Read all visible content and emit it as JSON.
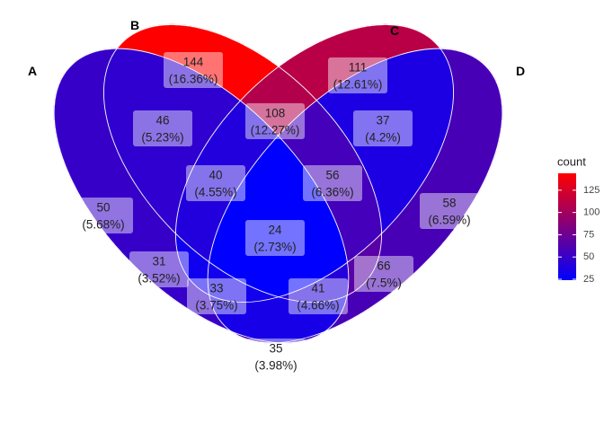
{
  "chart_data": {
    "type": "venn",
    "sets": [
      "A",
      "B",
      "C",
      "D"
    ],
    "regions": [
      {
        "sets": [
          "A"
        ],
        "count": 50,
        "percent": "5.68%"
      },
      {
        "sets": [
          "B"
        ],
        "count": 144,
        "percent": "16.36%"
      },
      {
        "sets": [
          "C"
        ],
        "count": 111,
        "percent": "12.61%"
      },
      {
        "sets": [
          "D"
        ],
        "count": 58,
        "percent": "6.59%"
      },
      {
        "sets": [
          "A",
          "B"
        ],
        "count": 46,
        "percent": "5.23%"
      },
      {
        "sets": [
          "B",
          "C"
        ],
        "count": 108,
        "percent": "12.27%"
      },
      {
        "sets": [
          "C",
          "D"
        ],
        "count": 37,
        "percent": "4.2%"
      },
      {
        "sets": [
          "A",
          "B",
          "C"
        ],
        "count": 40,
        "percent": "4.55%"
      },
      {
        "sets": [
          "B",
          "C",
          "D"
        ],
        "count": 56,
        "percent": "6.36%"
      },
      {
        "sets": [
          "A",
          "B",
          "C",
          "D"
        ],
        "count": 24,
        "percent": "2.73%"
      },
      {
        "sets": [
          "A",
          "C"
        ],
        "count": 31,
        "percent": "3.52%"
      },
      {
        "sets": [
          "A",
          "C",
          "D"
        ],
        "count": 33,
        "percent": "3.75%"
      },
      {
        "sets": [
          "A",
          "B",
          "D"
        ],
        "count": 41,
        "percent": "4.66%"
      },
      {
        "sets": [
          "B",
          "D"
        ],
        "count": 66,
        "percent": "7.5%"
      },
      {
        "sets": [
          "A",
          "D"
        ],
        "count": 35,
        "percent": "3.98%"
      }
    ],
    "legend": {
      "title": "count",
      "ticks": [
        25,
        50,
        75,
        100,
        125
      ],
      "range": [
        24,
        144
      ],
      "placement": "right",
      "color_low": "#0000ff",
      "color_high": "#ff0000"
    }
  }
}
